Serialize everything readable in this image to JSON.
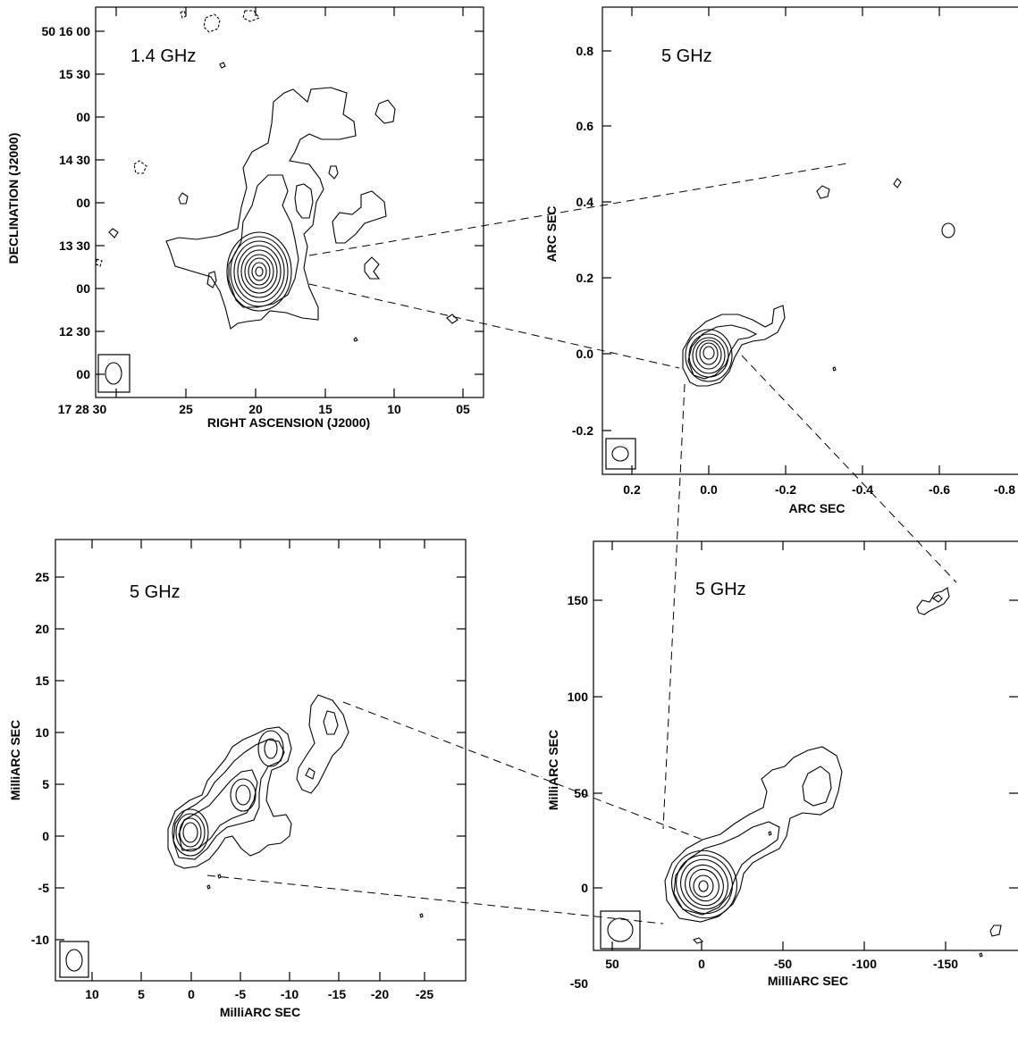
{
  "chart_data": [
    {
      "type": "contour",
      "panel": "top-left",
      "frequency_label": "1.4 GHz",
      "xlabel": "RIGHT ASCENSION (J2000)",
      "ylabel": "DECLINATION (J2000)",
      "x_ticks": [
        "17 28 30",
        "25",
        "20",
        "15",
        "10",
        "05"
      ],
      "y_ticks": [
        "50 16 00",
        "15 30",
        "00",
        "14 30",
        "00",
        "13 30",
        "00",
        "12 30",
        "00"
      ],
      "beam": "lower-left"
    },
    {
      "type": "contour",
      "panel": "top-right",
      "frequency_label": "5 GHz",
      "xlabel": "ARC SEC",
      "ylabel": "ARC SEC",
      "x_ticks": [
        "0.2",
        "0.0",
        "-0.2",
        "-0.4",
        "-0.6",
        "-0.8"
      ],
      "y_ticks": [
        "0.8",
        "0.6",
        "0.4",
        "0.2",
        "0.0",
        "-0.2"
      ],
      "beam": "lower-left"
    },
    {
      "type": "contour",
      "panel": "bottom-left",
      "frequency_label": "5 GHz",
      "xlabel": "MilliARC SEC",
      "ylabel": "MilliARC SEC",
      "x_ticks": [
        "10",
        "5",
        "0",
        "-5",
        "-10",
        "-15",
        "-20",
        "-25"
      ],
      "y_ticks": [
        "25",
        "20",
        "15",
        "10",
        "5",
        "0",
        "-5",
        "-10"
      ],
      "beam": "lower-left"
    },
    {
      "type": "contour",
      "panel": "bottom-right",
      "frequency_label": "5 GHz",
      "xlabel": "MilliARC SEC",
      "ylabel": "MilliARC SEC",
      "x_ticks": [
        "50",
        "0",
        "-50",
        "-100",
        "-150"
      ],
      "y_ticks": [
        "150",
        "100",
        "50",
        "0",
        "-50"
      ],
      "beam": "lower-left"
    }
  ]
}
